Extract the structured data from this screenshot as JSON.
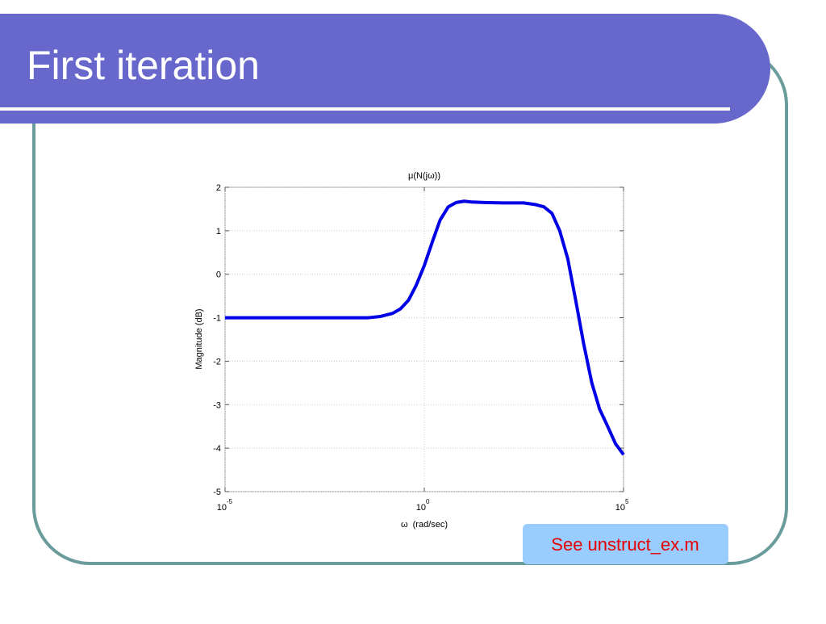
{
  "slide": {
    "title": "First iteration",
    "note": "See unstruct_ex.m"
  },
  "chart_data": {
    "type": "line",
    "title": "μ(N(jω))",
    "x_label": "ω  (rad/sec)",
    "y_label": "Magnitude (dB)",
    "x_scale": "log",
    "grid": true,
    "xlim": [
      1e-05,
      100000
    ],
    "xticks": [
      {
        "value": 1e-05,
        "label": "10",
        "exponent": "-5"
      },
      {
        "value": 1,
        "label": "10",
        "exponent": "0"
      },
      {
        "value": 100000,
        "label": "10",
        "exponent": "5"
      }
    ],
    "ylim": [
      -5,
      2
    ],
    "yticks": [
      -5,
      -4,
      -3,
      -2,
      -1,
      0,
      1,
      2
    ],
    "x": [
      1e-05,
      0.01,
      0.04,
      0.08,
      0.16,
      0.25,
      0.4,
      0.63,
      1,
      1.6,
      2.5,
      4,
      6.3,
      10,
      16,
      32,
      100,
      316,
      630,
      1000,
      1600,
      2500,
      4000,
      6300,
      10000,
      16000,
      25000,
      40000,
      63000,
      100000
    ],
    "series": [
      {
        "color": "#0000e6",
        "values": [
          -1,
          -1,
          -1,
          -0.97,
          -0.9,
          -0.8,
          -0.6,
          -0.25,
          0.2,
          0.75,
          1.25,
          1.55,
          1.65,
          1.68,
          1.66,
          1.65,
          1.64,
          1.64,
          1.6,
          1.55,
          1.4,
          1.0,
          0.35,
          -0.6,
          -1.6,
          -2.5,
          -3.1,
          -3.5,
          -3.9,
          -4.15
        ]
      }
    ]
  }
}
